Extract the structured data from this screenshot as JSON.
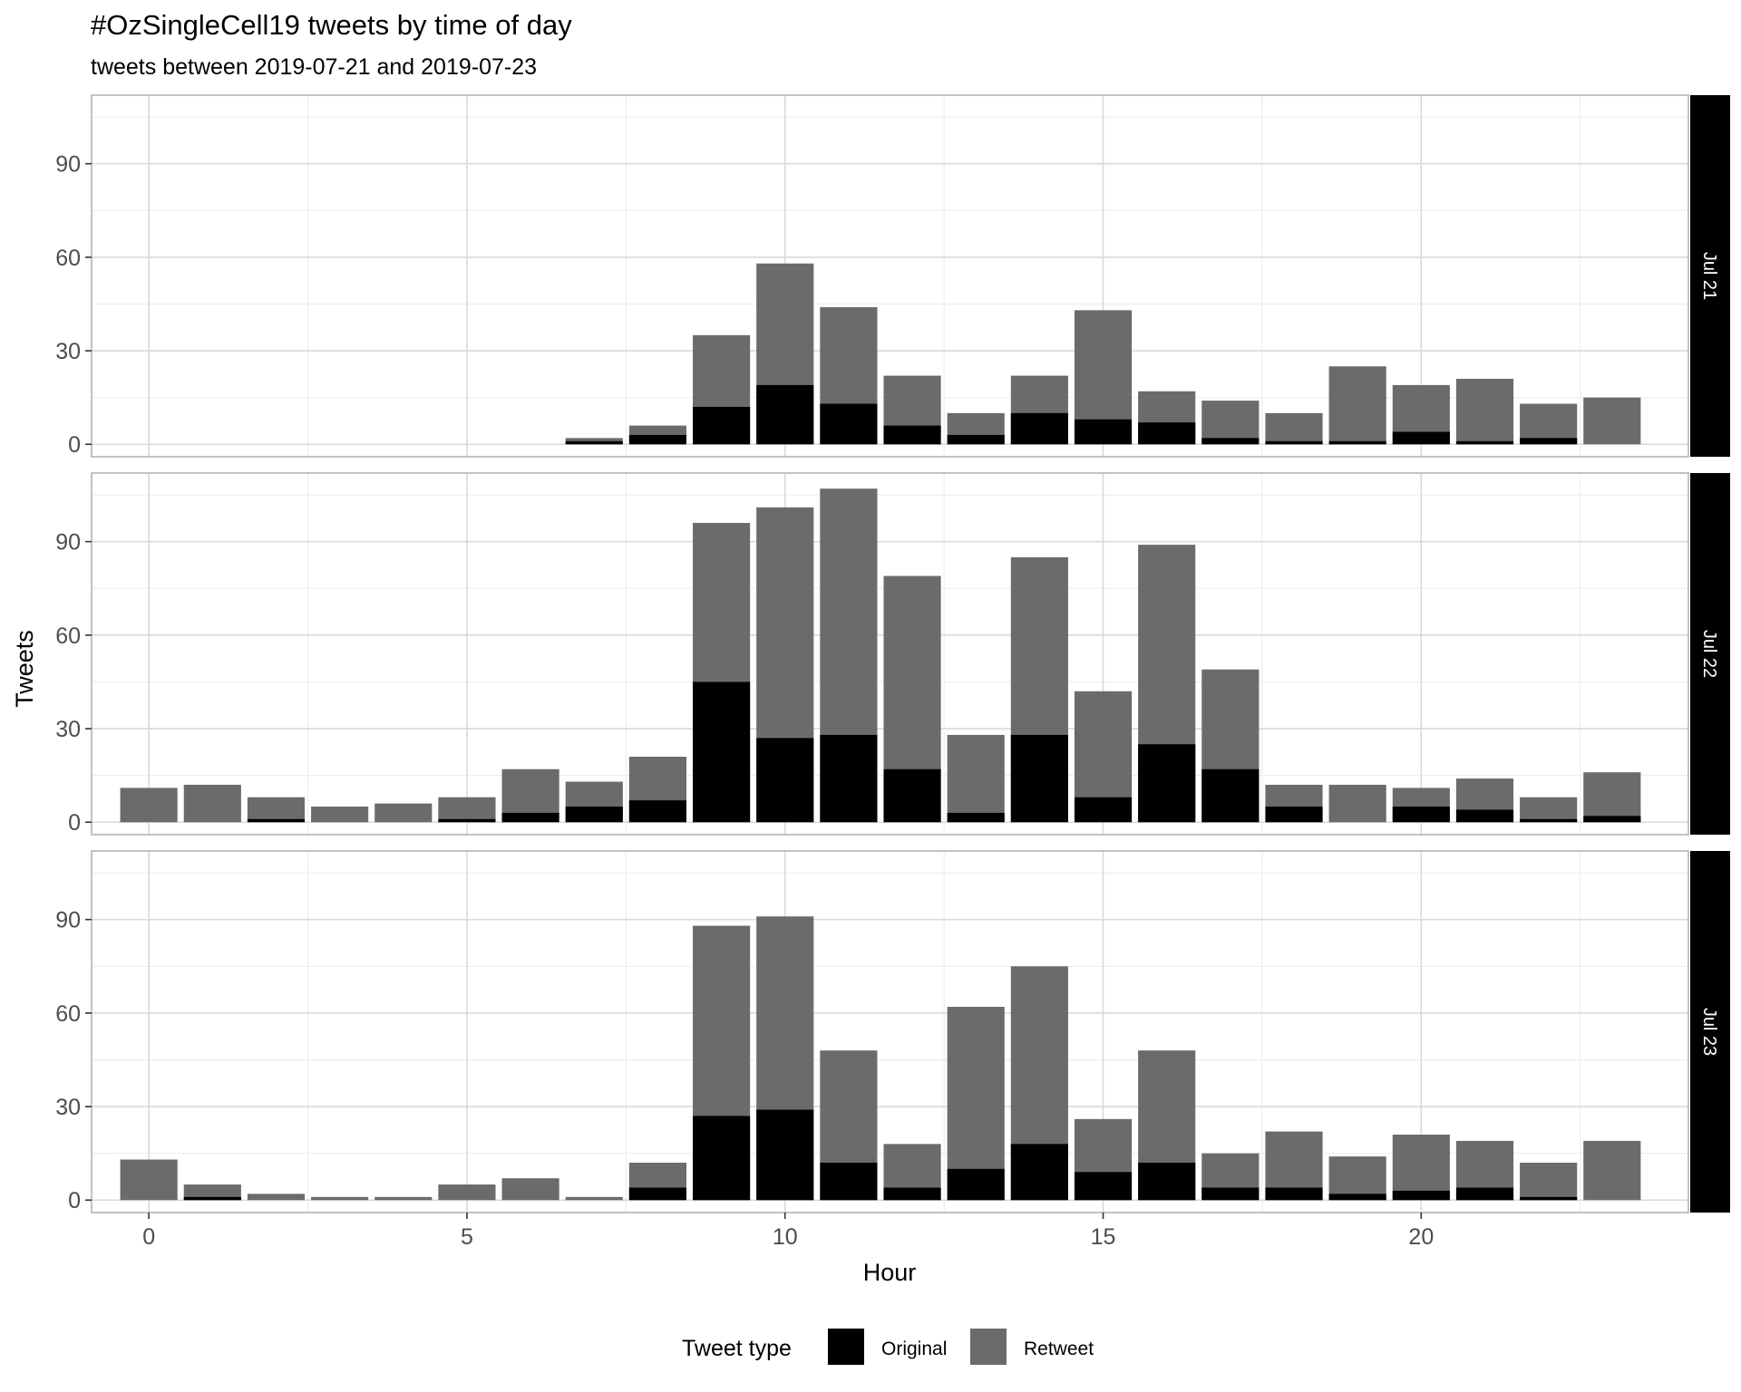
{
  "chart_data": {
    "type": "bar",
    "stacked": true,
    "title": "#OzSingleCell19 tweets by time of day",
    "subtitle": "tweets between 2019-07-21 and 2019-07-23",
    "xlabel": "Hour",
    "ylabel": "Tweets",
    "x_ticks": [
      0,
      5,
      10,
      15,
      20
    ],
    "y_ticks": [
      0,
      30,
      60,
      90
    ],
    "ylim": [
      -4,
      112
    ],
    "xlim": [
      -0.9,
      24.2
    ],
    "grid": true,
    "legend": {
      "title": "Tweet type",
      "position": "bottom",
      "entries": [
        {
          "label": "Original",
          "color": "#000000"
        },
        {
          "label": "Retweet",
          "color": "#6b6b6b"
        }
      ]
    },
    "hours": [
      0,
      1,
      2,
      3,
      4,
      5,
      6,
      7,
      8,
      9,
      10,
      11,
      12,
      13,
      14,
      15,
      16,
      17,
      18,
      19,
      20,
      21,
      22,
      23
    ],
    "panels": [
      {
        "label": "Jul 21",
        "original": [
          0,
          0,
          0,
          0,
          0,
          0,
          0,
          1,
          3,
          12,
          19,
          13,
          6,
          3,
          10,
          8,
          7,
          2,
          1,
          1,
          4,
          1,
          2,
          0
        ],
        "total": [
          0,
          0,
          0,
          0,
          0,
          0,
          0,
          2,
          6,
          35,
          58,
          44,
          22,
          10,
          22,
          43,
          17,
          14,
          10,
          25,
          19,
          21,
          13,
          15
        ]
      },
      {
        "label": "Jul 22",
        "original": [
          0,
          0,
          1,
          0,
          0,
          1,
          3,
          5,
          7,
          45,
          27,
          28,
          17,
          3,
          28,
          8,
          25,
          17,
          5,
          0,
          5,
          4,
          1,
          2
        ],
        "total": [
          11,
          12,
          8,
          5,
          6,
          8,
          17,
          13,
          21,
          96,
          101,
          107,
          79,
          28,
          85,
          42,
          89,
          49,
          12,
          12,
          11,
          14,
          8,
          16
        ]
      },
      {
        "label": "Jul 23",
        "original": [
          0,
          1,
          0,
          0,
          0,
          0,
          0,
          0,
          4,
          27,
          29,
          12,
          4,
          10,
          18,
          9,
          12,
          4,
          4,
          2,
          3,
          4,
          1,
          0
        ],
        "total": [
          13,
          5,
          2,
          1,
          1,
          5,
          7,
          1,
          12,
          88,
          91,
          48,
          18,
          62,
          75,
          26,
          48,
          15,
          22,
          14,
          21,
          19,
          12,
          19
        ]
      }
    ]
  }
}
